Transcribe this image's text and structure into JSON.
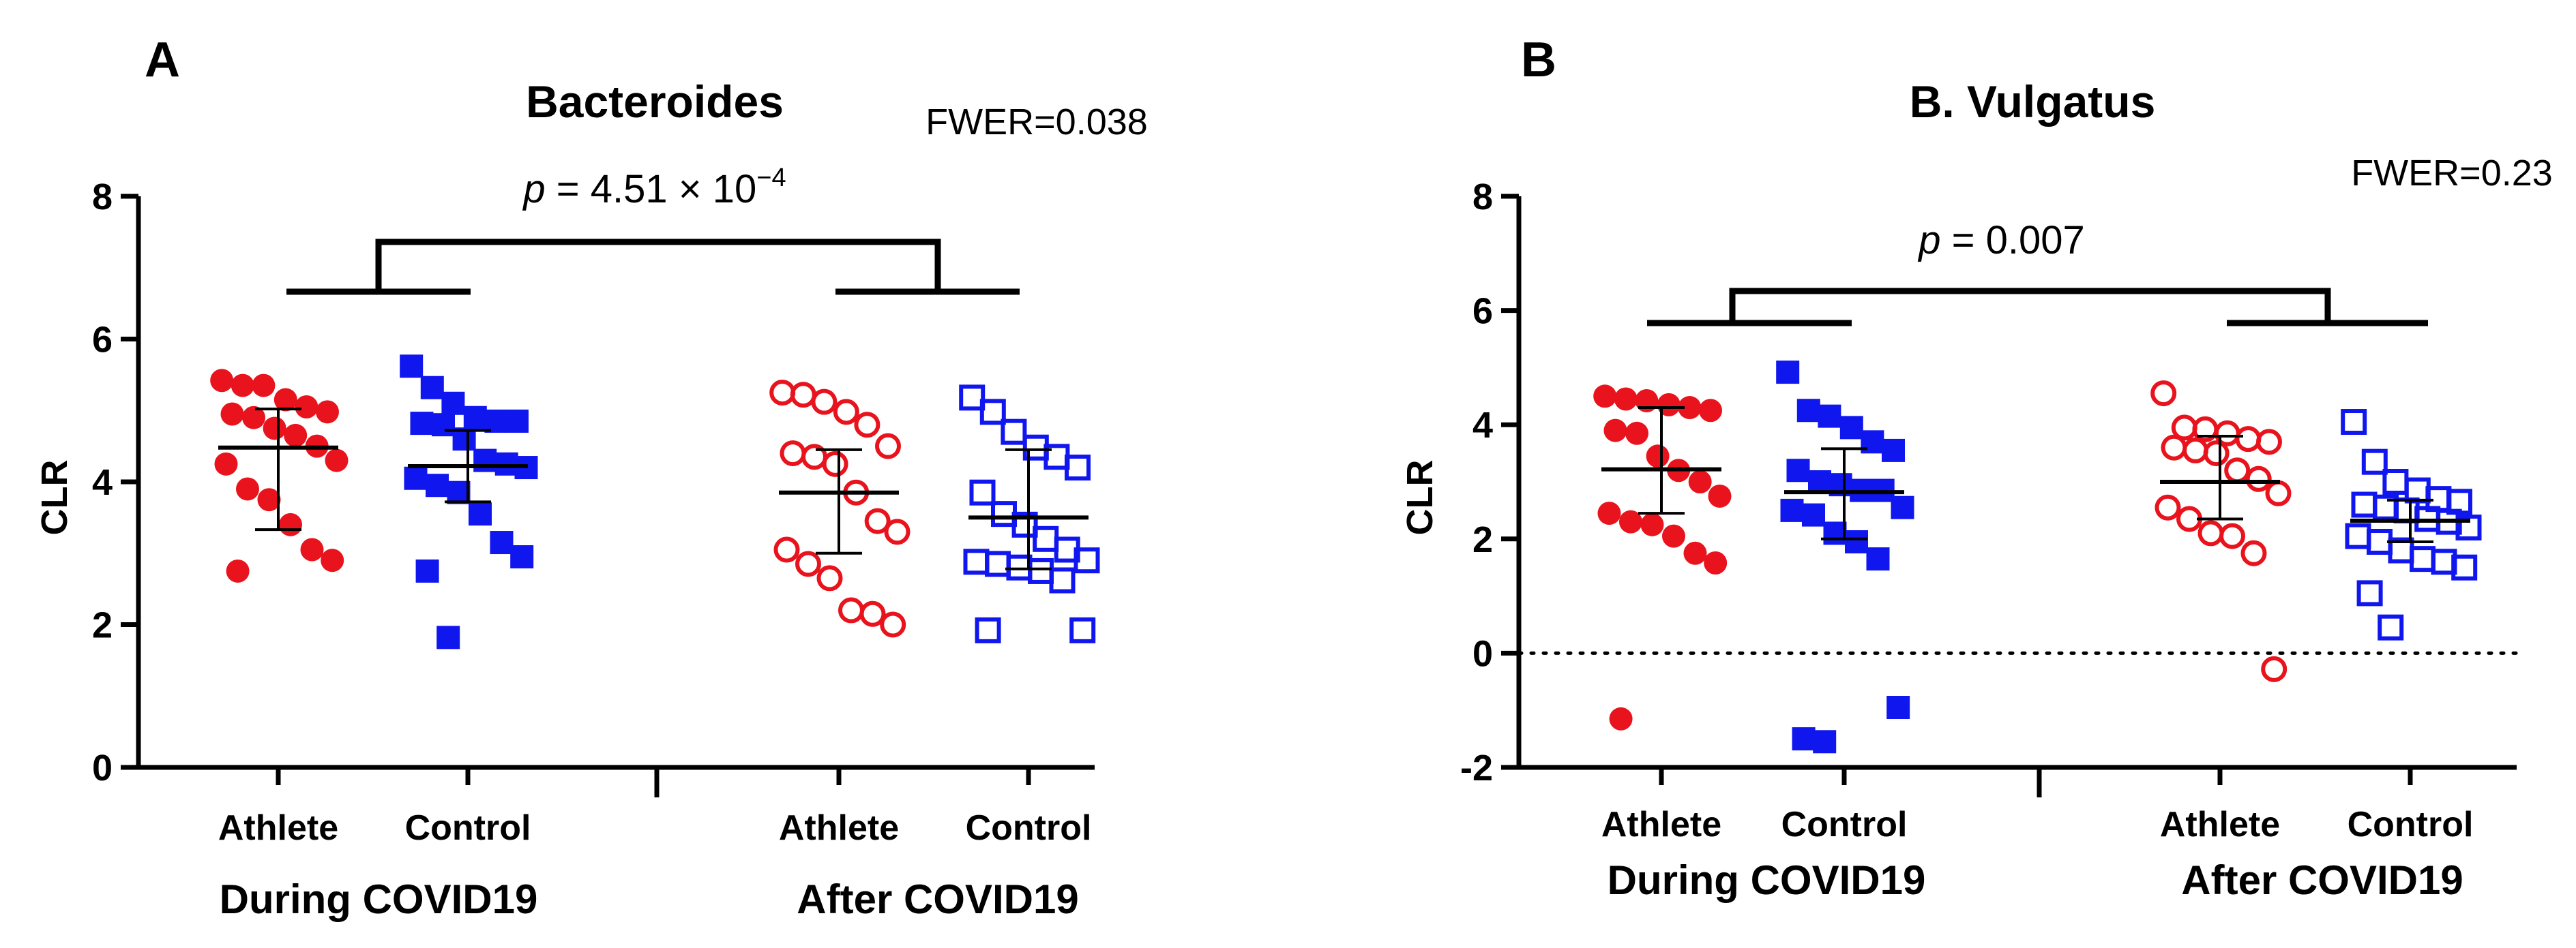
{
  "chart_data": [
    {
      "type": "scatter",
      "panel_label": "A",
      "title": "Bacteroides",
      "annotation_fwer": "FWER=0.038",
      "annotation_p": {
        "prefix": "p",
        "rest": " = 4.51 × 10",
        "exp": "−4"
      },
      "xlabel": "",
      "ylabel": "CLR",
      "ylim": [
        0,
        8
      ],
      "yticks": [
        0,
        2,
        4,
        6,
        8
      ],
      "reference_line": null,
      "categories": [
        "Athlete",
        "Control",
        "Athlete",
        "Control"
      ],
      "groups": [
        "During COVID19",
        "After COVID19"
      ],
      "series": [
        {
          "name": "During COVID19 Athlete",
          "color": "#e8131c",
          "marker": "circle",
          "filled": true,
          "mean": 4.48,
          "sd_low": 3.33,
          "sd_high": 5.02,
          "values": [
            5.42,
            5.35,
            5.35,
            5.15,
            5.05,
            4.98,
            4.95,
            4.9,
            4.75,
            4.65,
            4.5,
            4.3,
            4.25,
            3.9,
            3.75,
            3.4,
            3.05,
            2.9,
            2.75
          ]
        },
        {
          "name": "During COVID19 Control",
          "color": "#1016ee",
          "marker": "square",
          "filled": true,
          "mean": 4.22,
          "sd_low": 3.72,
          "sd_high": 4.72,
          "values": [
            5.62,
            5.32,
            5.1,
            4.9,
            4.85,
            4.85,
            4.82,
            4.8,
            4.6,
            4.3,
            4.25,
            4.2,
            4.05,
            3.95,
            3.85,
            3.55,
            3.15,
            2.95,
            2.75,
            1.82
          ]
        },
        {
          "name": "After COVID19 Athlete",
          "color": "#e8131c",
          "marker": "circle",
          "filled": false,
          "mean": 3.85,
          "sd_low": 3.0,
          "sd_high": 4.45,
          "values": [
            5.25,
            5.22,
            5.12,
            4.98,
            4.8,
            4.5,
            4.4,
            4.35,
            4.25,
            3.85,
            3.45,
            3.3,
            3.05,
            2.85,
            2.65,
            2.2,
            2.15,
            2.0
          ]
        },
        {
          "name": "After COVID19 Control",
          "color": "#1016ee",
          "marker": "square",
          "filled": false,
          "mean": 3.5,
          "sd_low": 2.78,
          "sd_high": 4.45,
          "values": [
            5.18,
            4.98,
            4.7,
            4.48,
            4.35,
            4.2,
            3.85,
            3.55,
            3.4,
            3.2,
            3.05,
            2.9,
            2.88,
            2.85,
            2.8,
            2.75,
            2.62,
            1.92,
            1.92
          ]
        }
      ]
    },
    {
      "type": "scatter",
      "panel_label": "B",
      "title": "B. Vulgatus",
      "annotation_fwer": "FWER=0.23",
      "annotation_p": {
        "prefix": "p",
        "rest": " = 0.007",
        "exp": ""
      },
      "xlabel": "",
      "ylabel": "CLR",
      "ylim": [
        -2,
        8
      ],
      "yticks": [
        -2,
        0,
        2,
        4,
        6,
        8
      ],
      "reference_line": 0,
      "categories": [
        "Athlete",
        "Control",
        "Athlete",
        "Control"
      ],
      "groups": [
        "During COVID19",
        "After COVID19"
      ],
      "series": [
        {
          "name": "During COVID19 Athlete",
          "color": "#e8131c",
          "marker": "circle",
          "filled": true,
          "mean": 3.22,
          "sd_low": 2.45,
          "sd_high": 4.3,
          "values": [
            4.5,
            4.45,
            4.42,
            4.35,
            4.3,
            4.25,
            3.9,
            3.85,
            3.45,
            3.2,
            3.0,
            2.75,
            2.45,
            2.3,
            2.25,
            2.05,
            1.75,
            1.58,
            -1.15
          ]
        },
        {
          "name": "During COVID19 Control",
          "color": "#1016ee",
          "marker": "square",
          "filled": true,
          "mean": 2.82,
          "sd_low": 2.0,
          "sd_high": 3.58,
          "values": [
            4.92,
            4.25,
            4.15,
            3.95,
            3.7,
            3.55,
            3.2,
            3.0,
            2.95,
            2.85,
            2.85,
            2.55,
            2.5,
            2.42,
            2.1,
            1.95,
            1.65,
            -0.95,
            -1.5,
            -1.55
          ]
        },
        {
          "name": "After COVID19 Athlete",
          "color": "#e8131c",
          "marker": "circle",
          "filled": false,
          "mean": 3.0,
          "sd_low": 2.35,
          "sd_high": 3.8,
          "values": [
            4.55,
            3.95,
            3.92,
            3.85,
            3.75,
            3.7,
            3.6,
            3.55,
            3.5,
            3.2,
            3.05,
            2.8,
            2.55,
            2.35,
            2.1,
            2.05,
            1.75,
            -0.28
          ]
        },
        {
          "name": "After COVID19 Control",
          "color": "#1016ee",
          "marker": "square",
          "filled": false,
          "mean": 2.32,
          "sd_low": 1.95,
          "sd_high": 2.68,
          "values": [
            4.05,
            3.35,
            3.0,
            2.85,
            2.7,
            2.65,
            2.6,
            2.55,
            2.5,
            2.35,
            2.3,
            2.2,
            2.05,
            1.95,
            1.8,
            1.65,
            1.6,
            1.5,
            1.05,
            0.45
          ]
        }
      ]
    }
  ]
}
